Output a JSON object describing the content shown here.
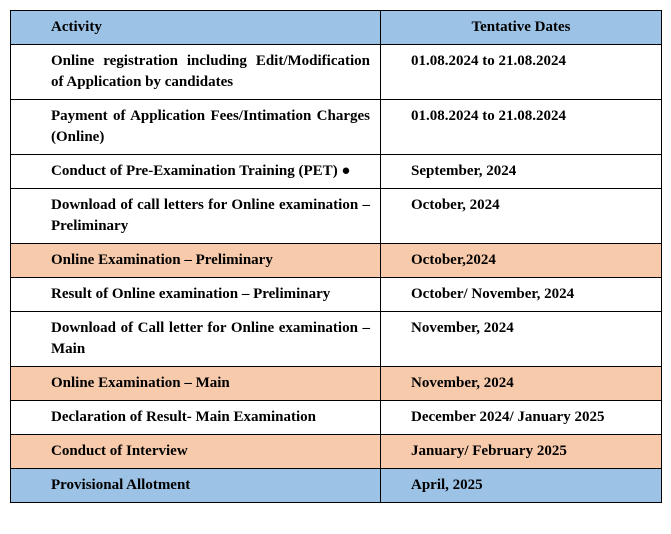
{
  "table": {
    "columns": [
      "Activity",
      "Tentative Dates"
    ],
    "header_bg": "#9cc2e5",
    "row_colors": {
      "default": "#ffffff",
      "highlight_peach": "#f7caac",
      "highlight_blue": "#9cc2e5"
    },
    "border_color": "#000000",
    "font_family": "Times New Roman",
    "cell_fontsize": 15,
    "cell_fontweight": "bold",
    "rows": [
      {
        "activity": "Online registration including Edit/Modification of Application by candidates",
        "dates": "01.08.2024 to 21.08.2024",
        "bg": "#ffffff"
      },
      {
        "activity": "Payment of Application Fees/Intimation Charges (Online)",
        "dates": "01.08.2024 to 21.08.2024",
        "bg": "#ffffff"
      },
      {
        "activity": "Conduct of Pre-Examination Training (PET) ●",
        "dates": "September, 2024",
        "bg": "#ffffff"
      },
      {
        "activity": "Download of call letters for Online examination – Preliminary",
        "dates": "October, 2024",
        "bg": "#ffffff"
      },
      {
        "activity": "Online Examination – Preliminary",
        "dates": "October,2024",
        "bg": "#f7caac"
      },
      {
        "activity": "Result of Online examination – Preliminary",
        "dates": "October/ November, 2024",
        "bg": "#ffffff"
      },
      {
        "activity": "Download of Call letter for Online examination – Main",
        "dates": "November, 2024",
        "bg": "#ffffff"
      },
      {
        "activity": "Online Examination – Main",
        "dates": "November, 2024",
        "bg": "#f7caac"
      },
      {
        "activity": "Declaration of Result- Main Examination",
        "dates": "December 2024/ January 2025",
        "bg": "#ffffff"
      },
      {
        "activity": "Conduct of Interview",
        "dates": "January/ February 2025",
        "bg": "#f7caac"
      },
      {
        "activity": "Provisional Allotment",
        "dates": "April, 2025",
        "bg": "#9cc2e5"
      }
    ]
  }
}
